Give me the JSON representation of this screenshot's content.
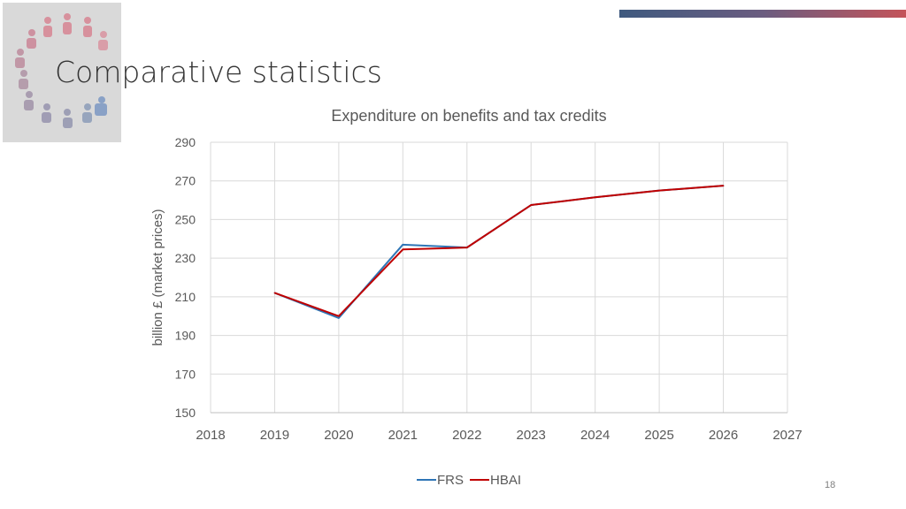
{
  "slide": {
    "title": "Comparative statistics",
    "page_number": "18",
    "accent_colors": [
      "#3f5a7f",
      "#c4545a"
    ]
  },
  "chart_data": {
    "type": "line",
    "title": "Expenditure on benefits and tax credits",
    "xlabel": "",
    "ylabel": "billion £ (market prices)",
    "xlim": [
      2018,
      2027
    ],
    "ylim": [
      150,
      290
    ],
    "xticks": [
      2018,
      2019,
      2020,
      2021,
      2022,
      2023,
      2024,
      2025,
      2026,
      2027
    ],
    "yticks": [
      150,
      170,
      190,
      210,
      230,
      250,
      270,
      290
    ],
    "grid": true,
    "legend_position": "bottom",
    "series": [
      {
        "name": "FRS",
        "color": "#2e75b6",
        "x": [
          2019,
          2020,
          2021,
          2022,
          2023,
          2024,
          2025,
          2026
        ],
        "values": [
          212,
          199,
          237,
          235.5,
          257.5,
          261.5,
          265,
          267.5
        ]
      },
      {
        "name": "HBAI",
        "color": "#c00000",
        "x": [
          2019,
          2020,
          2021,
          2022,
          2023,
          2024,
          2025,
          2026
        ],
        "values": [
          212,
          200,
          234.5,
          235.5,
          257.5,
          261.5,
          265,
          267.5
        ]
      }
    ]
  }
}
